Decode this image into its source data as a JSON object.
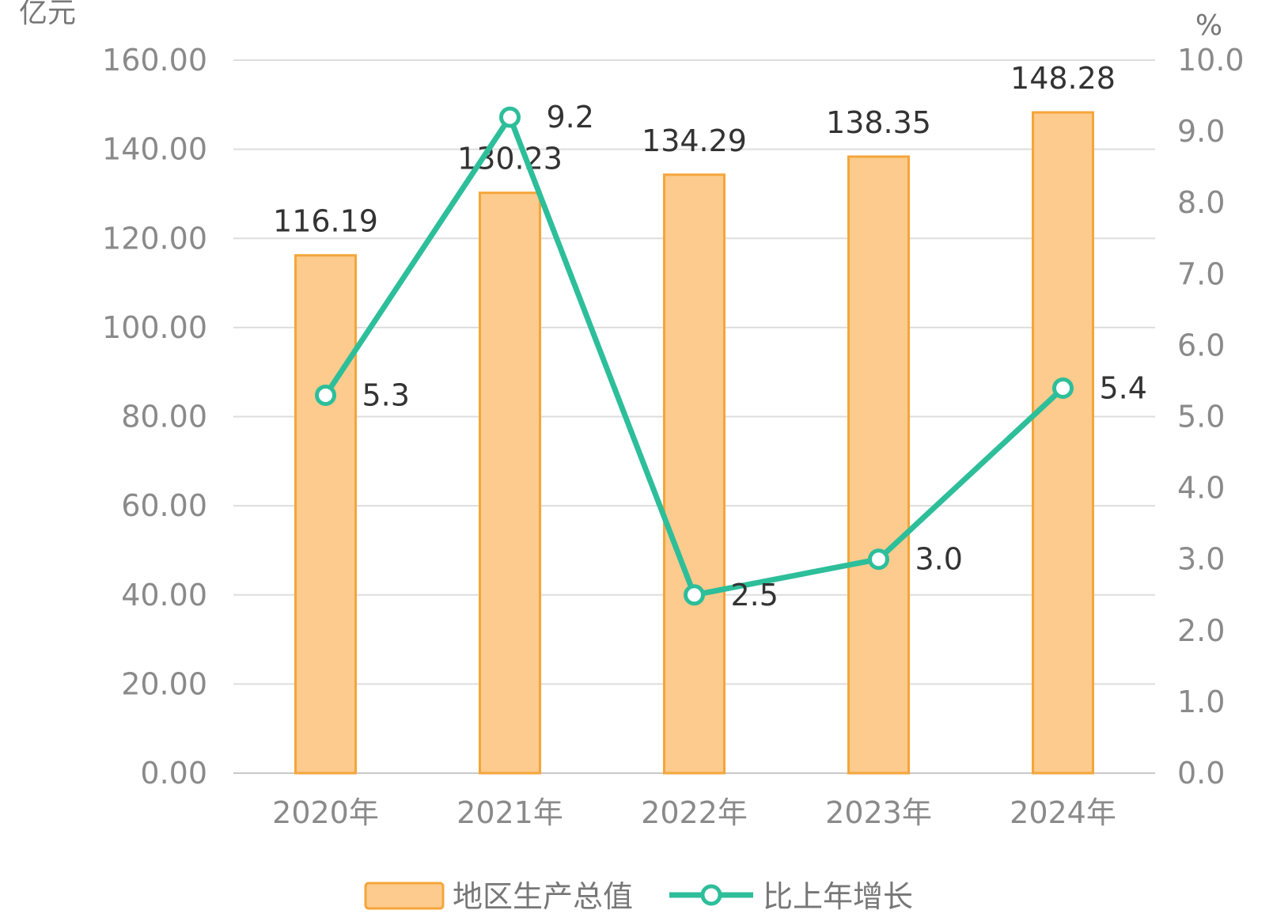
{
  "chart_data": {
    "type": "bar",
    "categories": [
      "2020年",
      "2021年",
      "2022年",
      "2023年",
      "2024年"
    ],
    "series": [
      {
        "name": "地区生产总值",
        "type": "bar",
        "axis": "left",
        "values": [
          116.19,
          130.23,
          134.29,
          138.35,
          148.28
        ],
        "color": "#FCCB8D",
        "border": "#F5A53A"
      },
      {
        "name": "比上年增长",
        "type": "line",
        "axis": "right",
        "values": [
          5.3,
          9.2,
          2.5,
          3.0,
          5.4
        ],
        "color": "#2DBE9A"
      }
    ],
    "y_left": {
      "unit": "亿元",
      "ylim": [
        0,
        160
      ],
      "ticks": [
        "0.00",
        "20.00",
        "40.00",
        "60.00",
        "80.00",
        "100.00",
        "120.00",
        "140.00",
        "160.00"
      ]
    },
    "y_right": {
      "unit": "%",
      "ylim": [
        0,
        10
      ],
      "ticks": [
        "0.0",
        "1.0",
        "2.0",
        "3.0",
        "4.0",
        "5.0",
        "6.0",
        "7.0",
        "8.0",
        "9.0",
        "10.0"
      ]
    },
    "bar_labels": [
      "116.19",
      "130.23",
      "134.29",
      "138.35",
      "148.28"
    ],
    "line_labels": [
      "5.3",
      "9.2",
      "2.5",
      "3.0",
      "5.4"
    ],
    "grid": true,
    "legend_position": "bottom"
  }
}
